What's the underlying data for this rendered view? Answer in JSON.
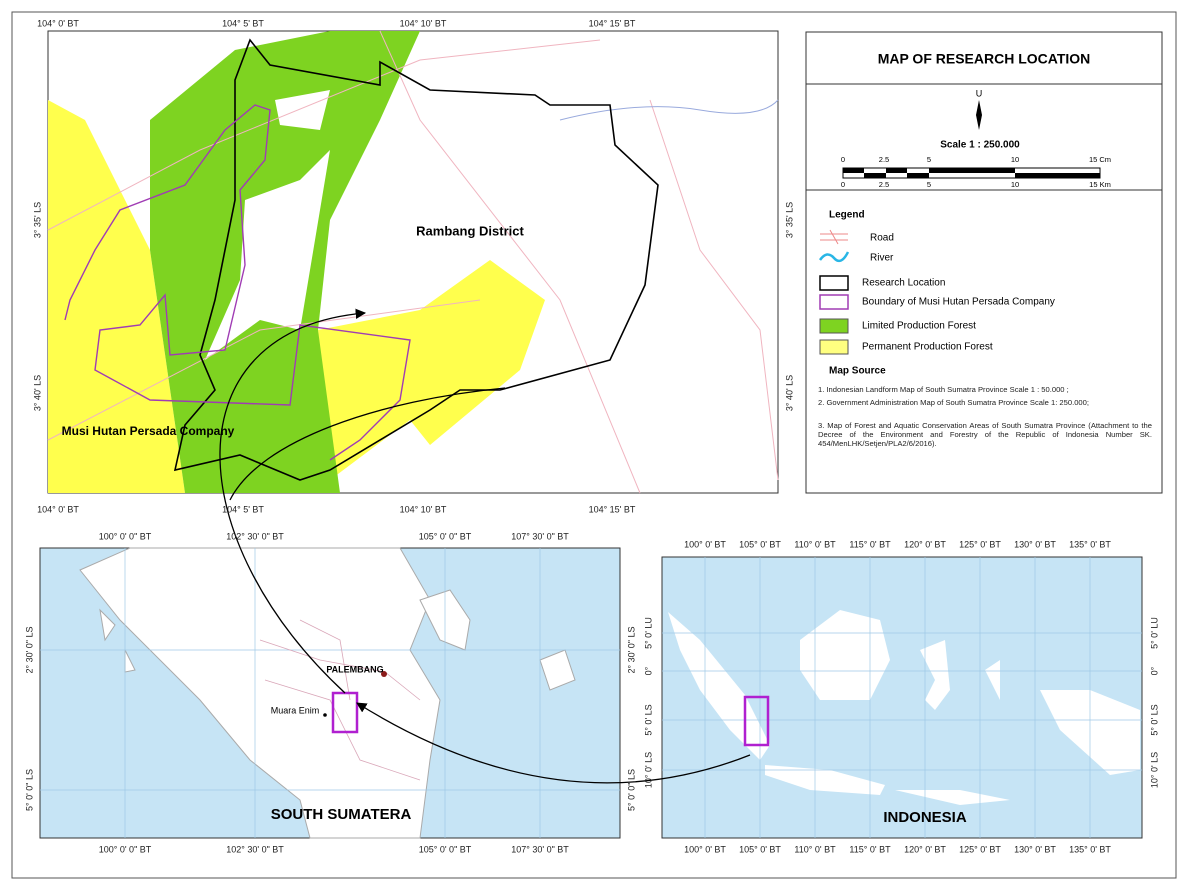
{
  "main_map": {
    "x_ticks": [
      "104° 0' BT",
      "104° 5' BT",
      "104° 10' BT",
      "104° 15' BT"
    ],
    "y_ticks": [
      "3° 35' LS",
      "3° 40' LS"
    ],
    "labels": [
      "Rambang District",
      "Musi Hutan Persada Company"
    ]
  },
  "legend_panel": {
    "title": "MAP OF RESEARCH LOCATION",
    "north": "U",
    "scale": "Scale 1 : 250.000",
    "scale_cm": [
      "0",
      "2.5",
      "5",
      "10",
      "15 Cm"
    ],
    "scale_km": [
      "0",
      "2.5",
      "5",
      "10",
      "15 Km"
    ],
    "legend_title": "Legend",
    "items": [
      "Road",
      "River",
      "Research Location",
      "Boundary of Musi Hutan Persada Company",
      "Limited Production Forest",
      "Permanent Production Forest"
    ],
    "source_title": "Map Source",
    "sources": [
      "1.  Indonesian Landform Map of South Sumatra Province Scale 1 : 50.000 ;",
      "2.  Government Administration Map of South Sumatra Province Scale 1: 250.000;",
      "3.  Map of Forest and Aquatic Conservation Areas of South Sumatra Province (Attachment to the Decree of the Environment and Forestry of the Republic of Indonesia Number SK. 454/MenLHK/Setjen/PLA2/6/2016)."
    ]
  },
  "south_sumatera": {
    "title": "SOUTH SUMATERA",
    "x_ticks": [
      "100° 0' 0\" BT",
      "102° 30' 0\" BT",
      "105° 0' 0\" BT",
      "107° 30' 0\" BT"
    ],
    "y_ticks": [
      "2° 30' 0\" LS",
      "5° 0' 0\" LS"
    ],
    "cities": [
      "PALEMBANG",
      "Muara Enim"
    ]
  },
  "indonesia": {
    "title": "INDONESIA",
    "x_ticks": [
      "100° 0' BT",
      "105° 0' BT",
      "110° 0' BT",
      "115° 0' BT",
      "120° 0' BT",
      "125° 0' BT",
      "130° 0' BT",
      "135° 0' BT"
    ],
    "y_ticks": [
      "5° 0' LU",
      "0°",
      "5° 0' LS",
      "10° 0' LS"
    ]
  }
}
